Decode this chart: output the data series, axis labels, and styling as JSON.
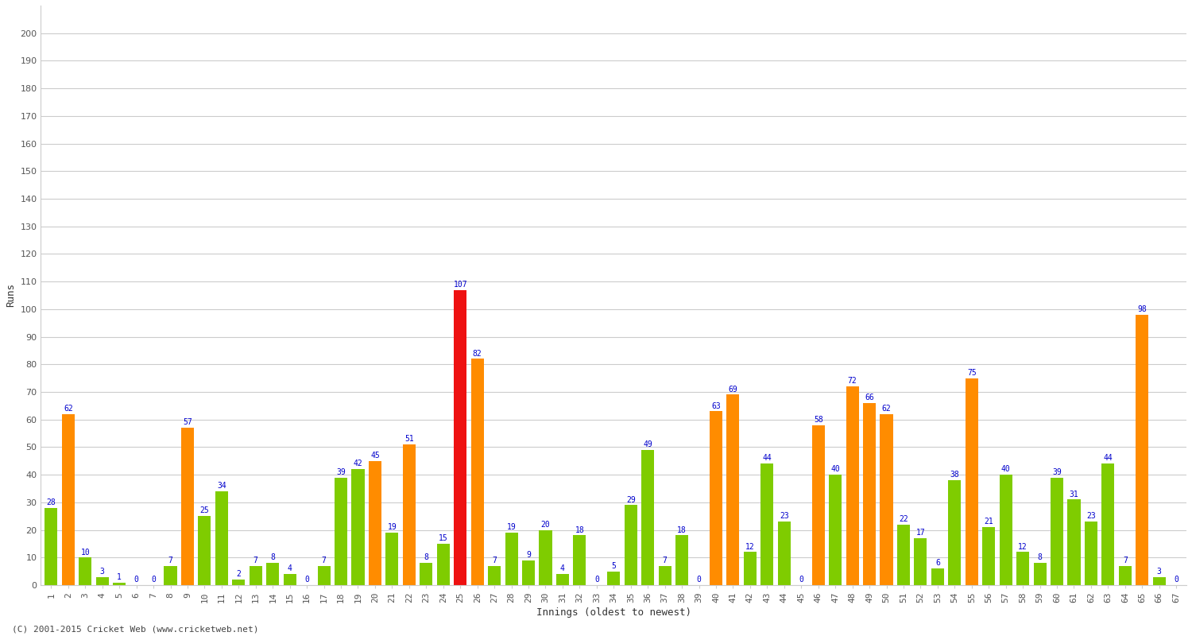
{
  "xlabel": "Innings (oldest to newest)",
  "ylabel": "Runs",
  "footer": "(C) 2001-2015 Cricket Web (www.cricketweb.net)",
  "ylim": [
    0,
    210
  ],
  "yticks": [
    0,
    10,
    20,
    30,
    40,
    50,
    60,
    70,
    80,
    90,
    100,
    110,
    120,
    130,
    140,
    150,
    160,
    170,
    180,
    190,
    200
  ],
  "innings": [
    {
      "inn": 1,
      "val": 28,
      "color": "green"
    },
    {
      "inn": 2,
      "val": 62,
      "color": "orange"
    },
    {
      "inn": 3,
      "val": 10,
      "color": "green"
    },
    {
      "inn": 4,
      "val": 3,
      "color": "green"
    },
    {
      "inn": 5,
      "val": 1,
      "color": "green"
    },
    {
      "inn": 6,
      "val": 0,
      "color": "green"
    },
    {
      "inn": 7,
      "val": 0,
      "color": "green"
    },
    {
      "inn": 8,
      "val": 7,
      "color": "green"
    },
    {
      "inn": 9,
      "val": 57,
      "color": "orange"
    },
    {
      "inn": 10,
      "val": 25,
      "color": "green"
    },
    {
      "inn": 11,
      "val": 34,
      "color": "green"
    },
    {
      "inn": 12,
      "val": 2,
      "color": "green"
    },
    {
      "inn": 13,
      "val": 7,
      "color": "green"
    },
    {
      "inn": 14,
      "val": 8,
      "color": "green"
    },
    {
      "inn": 15,
      "val": 4,
      "color": "green"
    },
    {
      "inn": 16,
      "val": 0,
      "color": "green"
    },
    {
      "inn": 17,
      "val": 7,
      "color": "green"
    },
    {
      "inn": 18,
      "val": 39,
      "color": "green"
    },
    {
      "inn": 19,
      "val": 42,
      "color": "green"
    },
    {
      "inn": 20,
      "val": 45,
      "color": "orange"
    },
    {
      "inn": 21,
      "val": 19,
      "color": "green"
    },
    {
      "inn": 22,
      "val": 51,
      "color": "orange"
    },
    {
      "inn": 23,
      "val": 8,
      "color": "green"
    },
    {
      "inn": 24,
      "val": 15,
      "color": "green"
    },
    {
      "inn": 25,
      "val": 107,
      "color": "red"
    },
    {
      "inn": 26,
      "val": 82,
      "color": "orange"
    },
    {
      "inn": 27,
      "val": 7,
      "color": "green"
    },
    {
      "inn": 28,
      "val": 19,
      "color": "green"
    },
    {
      "inn": 29,
      "val": 9,
      "color": "green"
    },
    {
      "inn": 30,
      "val": 20,
      "color": "green"
    },
    {
      "inn": 31,
      "val": 4,
      "color": "green"
    },
    {
      "inn": 32,
      "val": 18,
      "color": "green"
    },
    {
      "inn": 33,
      "val": 0,
      "color": "green"
    },
    {
      "inn": 34,
      "val": 5,
      "color": "green"
    },
    {
      "inn": 35,
      "val": 29,
      "color": "green"
    },
    {
      "inn": 36,
      "val": 49,
      "color": "green"
    },
    {
      "inn": 37,
      "val": 7,
      "color": "green"
    },
    {
      "inn": 38,
      "val": 18,
      "color": "green"
    },
    {
      "inn": 39,
      "val": 0,
      "color": "green"
    },
    {
      "inn": 40,
      "val": 63,
      "color": "orange"
    },
    {
      "inn": 41,
      "val": 69,
      "color": "orange"
    },
    {
      "inn": 42,
      "val": 12,
      "color": "green"
    },
    {
      "inn": 43,
      "val": 44,
      "color": "green"
    },
    {
      "inn": 44,
      "val": 23,
      "color": "green"
    },
    {
      "inn": 45,
      "val": 0,
      "color": "green"
    },
    {
      "inn": 46,
      "val": 58,
      "color": "orange"
    },
    {
      "inn": 47,
      "val": 40,
      "color": "green"
    },
    {
      "inn": 48,
      "val": 72,
      "color": "orange"
    },
    {
      "inn": 49,
      "val": 66,
      "color": "orange"
    },
    {
      "inn": 50,
      "val": 62,
      "color": "orange"
    },
    {
      "inn": 51,
      "val": 22,
      "color": "green"
    },
    {
      "inn": 52,
      "val": 17,
      "color": "green"
    },
    {
      "inn": 53,
      "val": 6,
      "color": "green"
    },
    {
      "inn": 54,
      "val": 38,
      "color": "green"
    },
    {
      "inn": 55,
      "val": 75,
      "color": "orange"
    },
    {
      "inn": 56,
      "val": 21,
      "color": "green"
    },
    {
      "inn": 57,
      "val": 40,
      "color": "green"
    },
    {
      "inn": 58,
      "val": 12,
      "color": "green"
    },
    {
      "inn": 59,
      "val": 8,
      "color": "green"
    },
    {
      "inn": 60,
      "val": 39,
      "color": "green"
    },
    {
      "inn": 61,
      "val": 31,
      "color": "green"
    },
    {
      "inn": 62,
      "val": 23,
      "color": "green"
    },
    {
      "inn": 63,
      "val": 44,
      "color": "green"
    },
    {
      "inn": 64,
      "val": 7,
      "color": "green"
    },
    {
      "inn": 65,
      "val": 98,
      "color": "orange"
    },
    {
      "inn": 66,
      "val": 3,
      "color": "green"
    },
    {
      "inn": 67,
      "val": 0,
      "color": "green"
    }
  ],
  "bar_color_map": {
    "green": "#7FCC00",
    "orange": "#FF8C00",
    "red": "#EE1111"
  },
  "background_color": "#FFFFFF",
  "grid_color": "#CCCCCC",
  "label_color": "#0000CC",
  "tick_color": "#555555",
  "axis_label_color": "#333333",
  "footer_color": "#444444"
}
